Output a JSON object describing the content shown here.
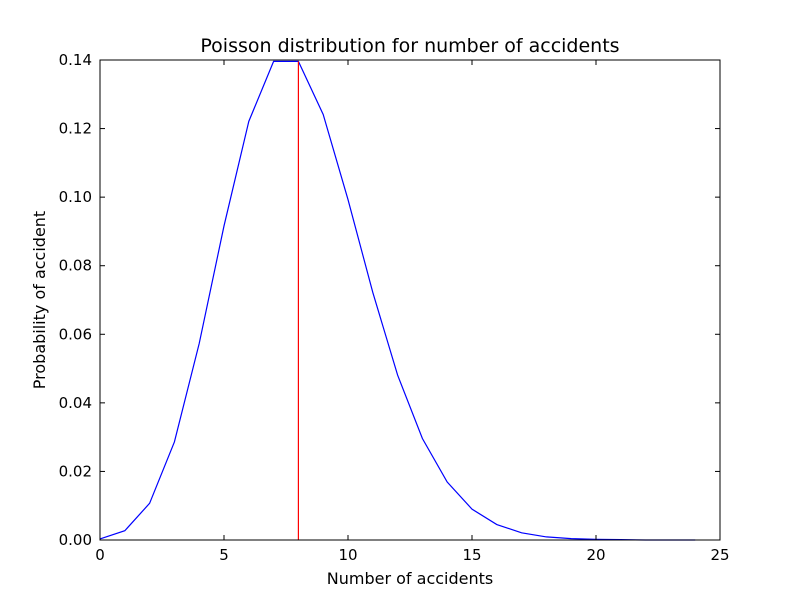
{
  "chart_data": {
    "type": "line",
    "title": "Poisson distribution for number of accidents",
    "xlabel": "Number of accidents",
    "ylabel": "Probability of accident",
    "xlim": [
      0,
      25
    ],
    "ylim": [
      0,
      0.14
    ],
    "xticks": [
      0,
      5,
      10,
      15,
      20,
      25
    ],
    "xtick_labels": [
      "0",
      "5",
      "10",
      "15",
      "20",
      "25"
    ],
    "yticks": [
      0,
      0.02,
      0.04,
      0.06,
      0.08,
      0.1,
      0.12,
      0.14
    ],
    "ytick_labels": [
      "0.00",
      "0.02",
      "0.04",
      "0.06",
      "0.08",
      "0.10",
      "0.12",
      "0.14"
    ],
    "grid": false,
    "series": [
      {
        "color": "#0000ff",
        "x": [
          0,
          1,
          2,
          3,
          4,
          5,
          6,
          7,
          8,
          9,
          10,
          11,
          12,
          13,
          14,
          15,
          16,
          17,
          18,
          19,
          20,
          21,
          22,
          23,
          24
        ],
        "values": [
          0.0003,
          0.0027,
          0.0107,
          0.0286,
          0.0573,
          0.0916,
          0.1221,
          0.1396,
          0.1396,
          0.1241,
          0.0993,
          0.0722,
          0.0481,
          0.0296,
          0.0169,
          0.009,
          0.0045,
          0.0021,
          0.0009,
          0.0004,
          0.0002,
          0.0001,
          0.0,
          0.0,
          0.0
        ]
      }
    ],
    "vlines": [
      {
        "x": 8,
        "y_from": 0,
        "y_to": 0.1396,
        "color": "#ff0000"
      }
    ]
  }
}
